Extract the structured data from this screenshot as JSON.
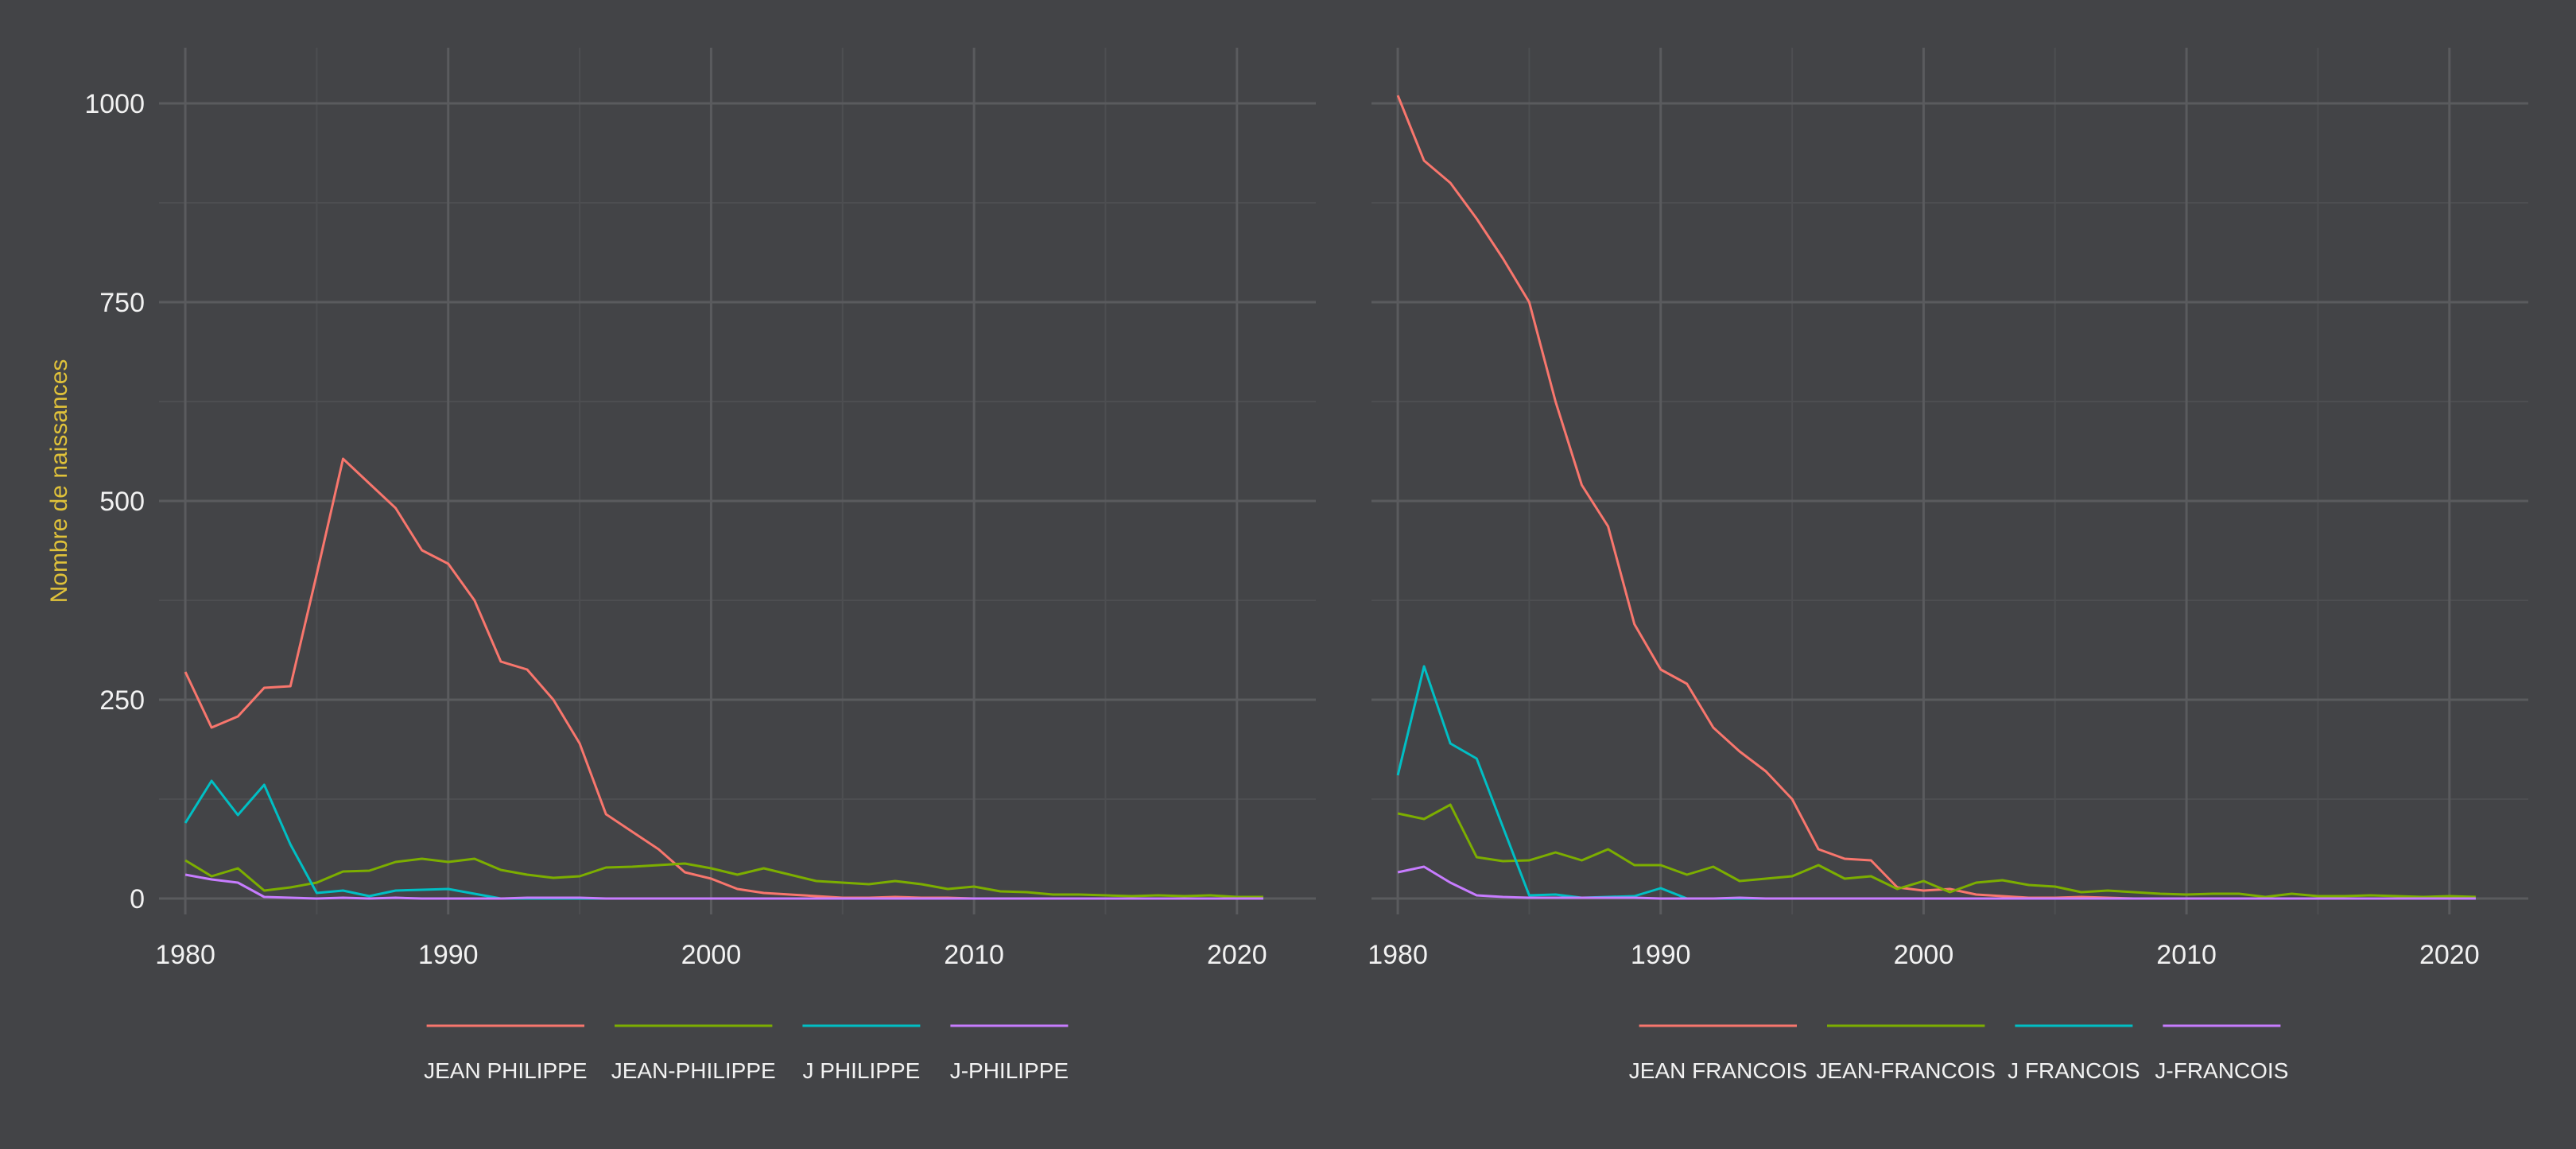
{
  "colors": {
    "background": "#434447",
    "grid_major": "#5a5b5e",
    "grid_minor": "#4d4e51",
    "tick_text": "#f2f2f2",
    "ylabel": "#e0c23a",
    "series": [
      "#f8766d",
      "#7cae00",
      "#00bfc4",
      "#c77cff"
    ]
  },
  "chart_data": [
    {
      "type": "line",
      "title": "",
      "xlabel": "",
      "ylabel": "Nombre de naissances",
      "xlim": [
        1979,
        2023
      ],
      "ylim": [
        -20,
        1070
      ],
      "xticks": [
        1980,
        1990,
        2000,
        2010,
        2020
      ],
      "yticks": [
        0,
        250,
        500,
        750,
        1000
      ],
      "grid": true,
      "legend_position": "bottom",
      "x": [
        1980,
        1981,
        1982,
        1983,
        1984,
        1985,
        1986,
        1987,
        1988,
        1989,
        1990,
        1991,
        1992,
        1993,
        1994,
        1995,
        1996,
        1997,
        1998,
        1999,
        2000,
        2001,
        2002,
        2003,
        2004,
        2005,
        2006,
        2007,
        2008,
        2009,
        2010,
        2011,
        2012,
        2013,
        2014,
        2015,
        2016,
        2017,
        2018,
        2019,
        2020,
        2021
      ],
      "series": [
        {
          "name": "JEAN PHILIPPE",
          "values": [
            285,
            215,
            229,
            265,
            267,
            408,
            553,
            522,
            491,
            438,
            421,
            375,
            298,
            288,
            250,
            195,
            106,
            84,
            62,
            33,
            25,
            12,
            7,
            5,
            3,
            1,
            1,
            2,
            1,
            1,
            0,
            0,
            0,
            0,
            0,
            0,
            0,
            0,
            0,
            0,
            0,
            0
          ]
        },
        {
          "name": "JEAN-PHILIPPE",
          "values": [
            48,
            28,
            38,
            10,
            14,
            20,
            34,
            35,
            46,
            50,
            46,
            50,
            36,
            30,
            26,
            28,
            39,
            40,
            42,
            44,
            38,
            30,
            38,
            30,
            22,
            20,
            18,
            22,
            18,
            12,
            15,
            9,
            8,
            5,
            5,
            4,
            3,
            4,
            3,
            4,
            2,
            2
          ]
        },
        {
          "name": "J PHILIPPE",
          "values": [
            95,
            148,
            105,
            143,
            68,
            7,
            10,
            3,
            10,
            11,
            12,
            6,
            0,
            0,
            0,
            0,
            0,
            0,
            0,
            0,
            0,
            0,
            0,
            0,
            0,
            0,
            0,
            0,
            0,
            0,
            0,
            0,
            0,
            0,
            0,
            0,
            0,
            0,
            0,
            0,
            0,
            0
          ]
        },
        {
          "name": "J-PHILIPPE",
          "values": [
            30,
            24,
            20,
            2,
            1,
            0,
            1,
            0,
            1,
            0,
            0,
            0,
            0,
            1,
            1,
            1,
            0,
            0,
            0,
            0,
            0,
            0,
            0,
            0,
            0,
            0,
            0,
            0,
            0,
            0,
            0,
            0,
            0,
            0,
            0,
            0,
            0,
            0,
            0,
            0,
            0,
            0
          ]
        }
      ]
    },
    {
      "type": "line",
      "title": "",
      "xlabel": "",
      "ylabel": "",
      "xlim": [
        1979,
        2023
      ],
      "ylim": [
        -20,
        1070
      ],
      "xticks": [
        1980,
        1990,
        2000,
        2010,
        2020
      ],
      "yticks": [
        0,
        250,
        500,
        750,
        1000
      ],
      "grid": true,
      "legend_position": "bottom",
      "x": [
        1980,
        1981,
        1982,
        1983,
        1984,
        1985,
        1986,
        1987,
        1988,
        1989,
        1990,
        1991,
        1992,
        1993,
        1994,
        1995,
        1996,
        1997,
        1998,
        1999,
        2000,
        2001,
        2002,
        2003,
        2004,
        2005,
        2006,
        2007,
        2008,
        2009,
        2010,
        2011,
        2012,
        2013,
        2014,
        2015,
        2016,
        2017,
        2018,
        2019,
        2020,
        2021
      ],
      "series": [
        {
          "name": "JEAN FRANCOIS",
          "values": [
            1010,
            928,
            900,
            855,
            805,
            750,
            625,
            520,
            468,
            345,
            288,
            270,
            215,
            185,
            160,
            125,
            62,
            50,
            48,
            14,
            10,
            12,
            5,
            3,
            1,
            1,
            2,
            1,
            0,
            0,
            0,
            0,
            0,
            0,
            0,
            0,
            0,
            0,
            0,
            0,
            0,
            0
          ]
        },
        {
          "name": "JEAN-FRANCOIS",
          "values": [
            107,
            100,
            118,
            52,
            47,
            48,
            58,
            48,
            62,
            42,
            42,
            30,
            40,
            22,
            25,
            28,
            42,
            25,
            28,
            12,
            22,
            8,
            20,
            23,
            17,
            15,
            8,
            10,
            8,
            6,
            5,
            6,
            6,
            2,
            6,
            3,
            3,
            4,
            3,
            2,
            3,
            2
          ]
        },
        {
          "name": "J FRANCOIS",
          "values": [
            155,
            292,
            195,
            176,
            90,
            4,
            5,
            1,
            2,
            3,
            13,
            0,
            0,
            0,
            0,
            0,
            0,
            0,
            0,
            0,
            0,
            0,
            0,
            0,
            0,
            0,
            0,
            0,
            0,
            0,
            0,
            0,
            0,
            0,
            0,
            0,
            0,
            0,
            0,
            0,
            0,
            0
          ]
        },
        {
          "name": "J-FRANCOIS",
          "values": [
            33,
            40,
            20,
            4,
            2,
            1,
            1,
            1,
            1,
            1,
            0,
            0,
            0,
            1,
            0,
            0,
            0,
            0,
            0,
            0,
            0,
            0,
            0,
            0,
            0,
            0,
            0,
            0,
            0,
            0,
            0,
            0,
            0,
            0,
            0,
            0,
            0,
            0,
            0,
            0,
            0,
            0
          ]
        }
      ]
    }
  ]
}
